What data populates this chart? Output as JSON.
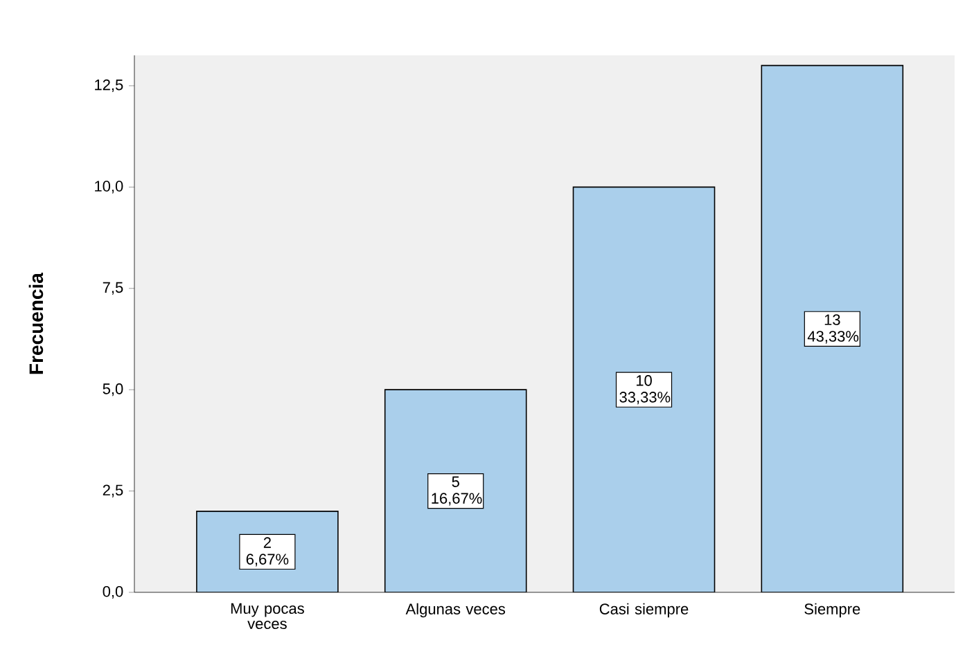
{
  "chart_data": {
    "type": "bar",
    "ylabel": "**Frecuencia**",
    "categories": [
      "Muy pocas veces",
      "Algunas veces",
      "Casi siempre",
      "Siempre"
    ],
    "values": [
      2,
      5,
      10,
      13
    ],
    "color": "#aacfeb",
    "value_labels": [
      "2 6,67%",
      "5 16,67%",
      "10 33,33%",
      "13 43,33%"
    ],
    "ylim": [
      0,
      13.25
    ],
    "yticks": [
      {
        "value": 0,
        "label": "0,0"
      },
      {
        "value": 2.5,
        "label": "2,5"
      },
      {
        "value": 5,
        "label": "5,0"
      },
      {
        "value": 7.5,
        "label": "7,5"
      },
      {
        "value": 10,
        "label": "10,0"
      },
      {
        "value": 12.5,
        "label": "12,5"
      }
    ],
    "grid": false
  }
}
